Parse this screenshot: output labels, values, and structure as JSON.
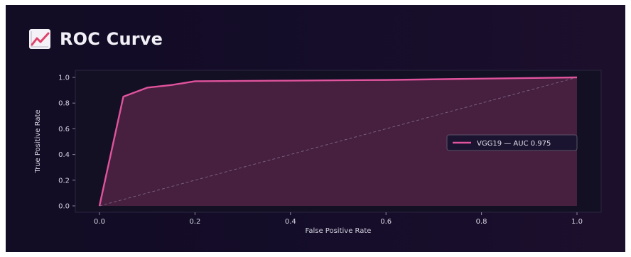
{
  "header": {
    "icon": "line-chart-icon",
    "title": "ROC Curve"
  },
  "colors": {
    "background": "#140d28",
    "plot_background": "#131024",
    "curve": "#e0539d",
    "fill": "#5a2448",
    "diagonal": "#8a7f9a",
    "text": "#d6d2e0"
  },
  "chart_data": {
    "type": "area",
    "title": "",
    "xlabel": "False Positive Rate",
    "ylabel": "True Positive Rate",
    "xlim": [
      0,
      1
    ],
    "ylim": [
      0,
      1
    ],
    "xticks": [
      "0.0",
      "0.2",
      "0.4",
      "0.6",
      "0.8",
      "1.0"
    ],
    "yticks": [
      "0.0",
      "0.2",
      "0.4",
      "0.6",
      "0.8",
      "1.0"
    ],
    "grid": false,
    "legend_position": "center-right",
    "series": [
      {
        "name": "VGG19 — AUC 0.975",
        "x": [
          0.0,
          0.05,
          0.1,
          0.15,
          0.2,
          0.4,
          0.6,
          0.8,
          1.0
        ],
        "y": [
          0.0,
          0.85,
          0.92,
          0.94,
          0.97,
          0.975,
          0.98,
          0.99,
          1.0
        ]
      }
    ],
    "baseline": {
      "x": [
        0,
        1
      ],
      "y": [
        0,
        1
      ],
      "style": "dashed"
    }
  }
}
